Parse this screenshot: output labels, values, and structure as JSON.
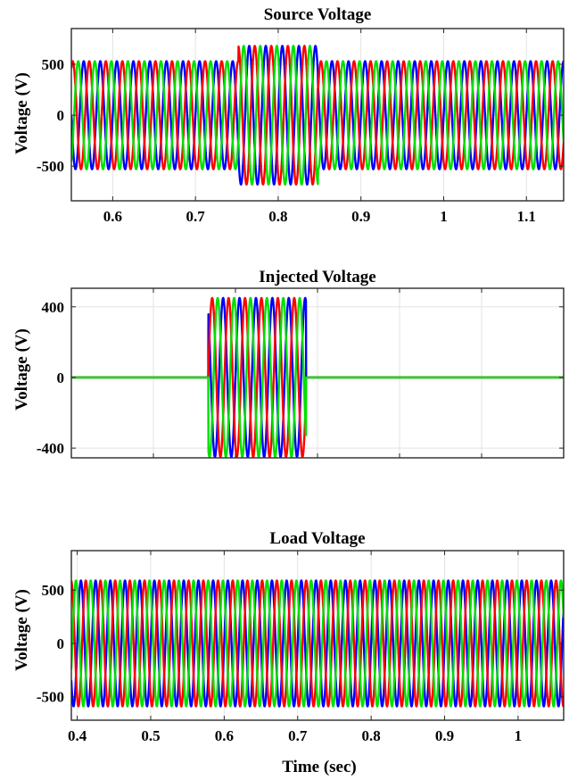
{
  "chart_data": [
    {
      "type": "line",
      "title": "Source Voltage",
      "xlabel": "",
      "ylabel": "Voltage (V)",
      "xlim": [
        0.55,
        1.145
      ],
      "ylim": [
        -840,
        850
      ],
      "grid": true,
      "xticks": [
        0.6,
        0.7,
        0.8,
        0.9,
        1,
        1.1
      ],
      "xtick_labels": [
        "0.6",
        "0.7",
        "0.8",
        "0.9",
        "1",
        "1.1"
      ],
      "yticks": [
        -500,
        0,
        500
      ],
      "ytick_labels": [
        "-500",
        "0",
        "500"
      ],
      "frequency_hz": 50,
      "series": [
        {
          "color": "#0000ff",
          "phase_deg": 0
        },
        {
          "color": "#ff0000",
          "phase_deg": -120
        },
        {
          "color": "#00e000",
          "phase_deg": 120
        }
      ],
      "segments": [
        {
          "x": [
            0.55,
            0.752
          ],
          "amplitude": 530
        },
        {
          "x": [
            0.752,
            0.848
          ],
          "amplitude": 680
        },
        {
          "x": [
            0.848,
            1.145
          ],
          "amplitude": 530
        }
      ]
    },
    {
      "type": "line",
      "title": "Injected Voltage",
      "xlabel": "",
      "ylabel": "Voltage (V)",
      "xlim": [
        0.4,
        1.0
      ],
      "ylim": [
        -455,
        505
      ],
      "grid": true,
      "xticks": [
        0.5,
        0.6,
        0.7,
        0.8,
        0.9
      ],
      "xtick_labels": [],
      "yticks": [
        -400,
        0,
        400
      ],
      "ytick_labels": [
        "-400",
        "0",
        "400"
      ],
      "frequency_hz": 50,
      "series": [
        {
          "color": "#0000ff",
          "phase_deg": 0
        },
        {
          "color": "#ff0000",
          "phase_deg": -120
        },
        {
          "color": "#00e000",
          "phase_deg": 120
        }
      ],
      "segments": [
        {
          "x": [
            0.4,
            0.567
          ],
          "amplitude": 0
        },
        {
          "x": [
            0.567,
            0.686
          ],
          "amplitude": 450
        },
        {
          "x": [
            0.686,
            1.0
          ],
          "amplitude": 0
        }
      ]
    },
    {
      "type": "line",
      "title": "Load Voltage",
      "xlabel": "Time (sec)",
      "ylabel": "Voltage (V)",
      "xlim": [
        0.392,
        1.062
      ],
      "ylim": [
        -720,
        870
      ],
      "grid": true,
      "xticks": [
        0.4,
        0.5,
        0.6,
        0.7,
        0.8,
        0.9,
        1
      ],
      "xtick_labels": [
        "0.4",
        "0.5",
        "0.6",
        "0.7",
        "0.8",
        "0.9",
        "1"
      ],
      "yticks": [
        -500,
        0,
        500
      ],
      "ytick_labels": [
        "-500",
        "0",
        "500"
      ],
      "frequency_hz": 50,
      "series": [
        {
          "color": "#0000ff",
          "phase_deg": 0
        },
        {
          "color": "#ff0000",
          "phase_deg": -120
        },
        {
          "color": "#00e000",
          "phase_deg": 120
        }
      ],
      "segments": [
        {
          "x": [
            0.392,
            1.062
          ],
          "amplitude": 590
        }
      ]
    }
  ]
}
